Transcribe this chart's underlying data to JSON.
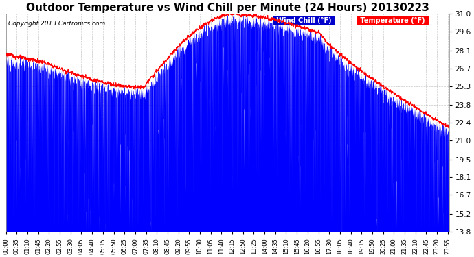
{
  "title": "Outdoor Temperature vs Wind Chill per Minute (24 Hours) 20130223",
  "copyright": "Copyright 2013 Cartronics.com",
  "yticks": [
    13.8,
    15.2,
    16.7,
    18.1,
    19.5,
    21.0,
    22.4,
    23.8,
    25.3,
    26.7,
    28.1,
    29.6,
    31.0
  ],
  "ymin": 13.8,
  "ymax": 31.0,
  "bg_color": "#ffffff",
  "plot_bg": "#ffffff",
  "bar_color": "#0000FF",
  "line_color": "#FF0000",
  "legend_wind_label": "Wind Chill (°F)",
  "legend_temp_label": "Temperature (°F)",
  "title_fontsize": 12,
  "xtick_interval_minutes": 35,
  "grid_color": "#bbbbbb",
  "copyright_color": "#000000",
  "ytick_color": "#000000"
}
